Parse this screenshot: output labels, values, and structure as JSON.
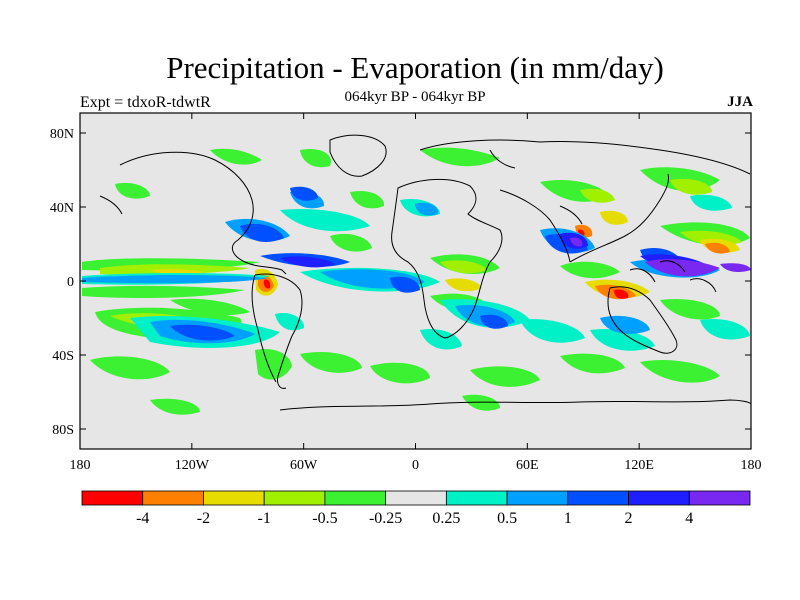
{
  "title": "Precipitation - Evaporation (in mm/day)",
  "subtitle": "064kyr BP - 064kyr BP",
  "experiment": "Expt = tdxoR-tdwtR",
  "season": "JJA",
  "map": {
    "lat_labels": [
      "80N",
      "40N",
      "0",
      "40S",
      "80S"
    ],
    "lat_values": [
      80,
      40,
      0,
      -40,
      -80
    ],
    "lon_labels": [
      "180",
      "120W",
      "60W",
      "0",
      "60E",
      "120E",
      "180"
    ],
    "lon_values": [
      -180,
      -120,
      -60,
      0,
      60,
      120,
      180
    ],
    "background_color": "#e6e6e6"
  },
  "colorbar": {
    "colors": [
      "#ff0000",
      "#ff8000",
      "#e6dc00",
      "#a0f000",
      "#3cf032",
      "#e6e6e6",
      "#00f0c8",
      "#00a0ff",
      "#0050ff",
      "#1e1eff",
      "#7828f0"
    ],
    "labels": [
      "-4",
      "-2",
      "-1",
      "-0.5",
      "-0.25",
      "0.25",
      "0.5",
      "1",
      "2",
      "4"
    ]
  }
}
